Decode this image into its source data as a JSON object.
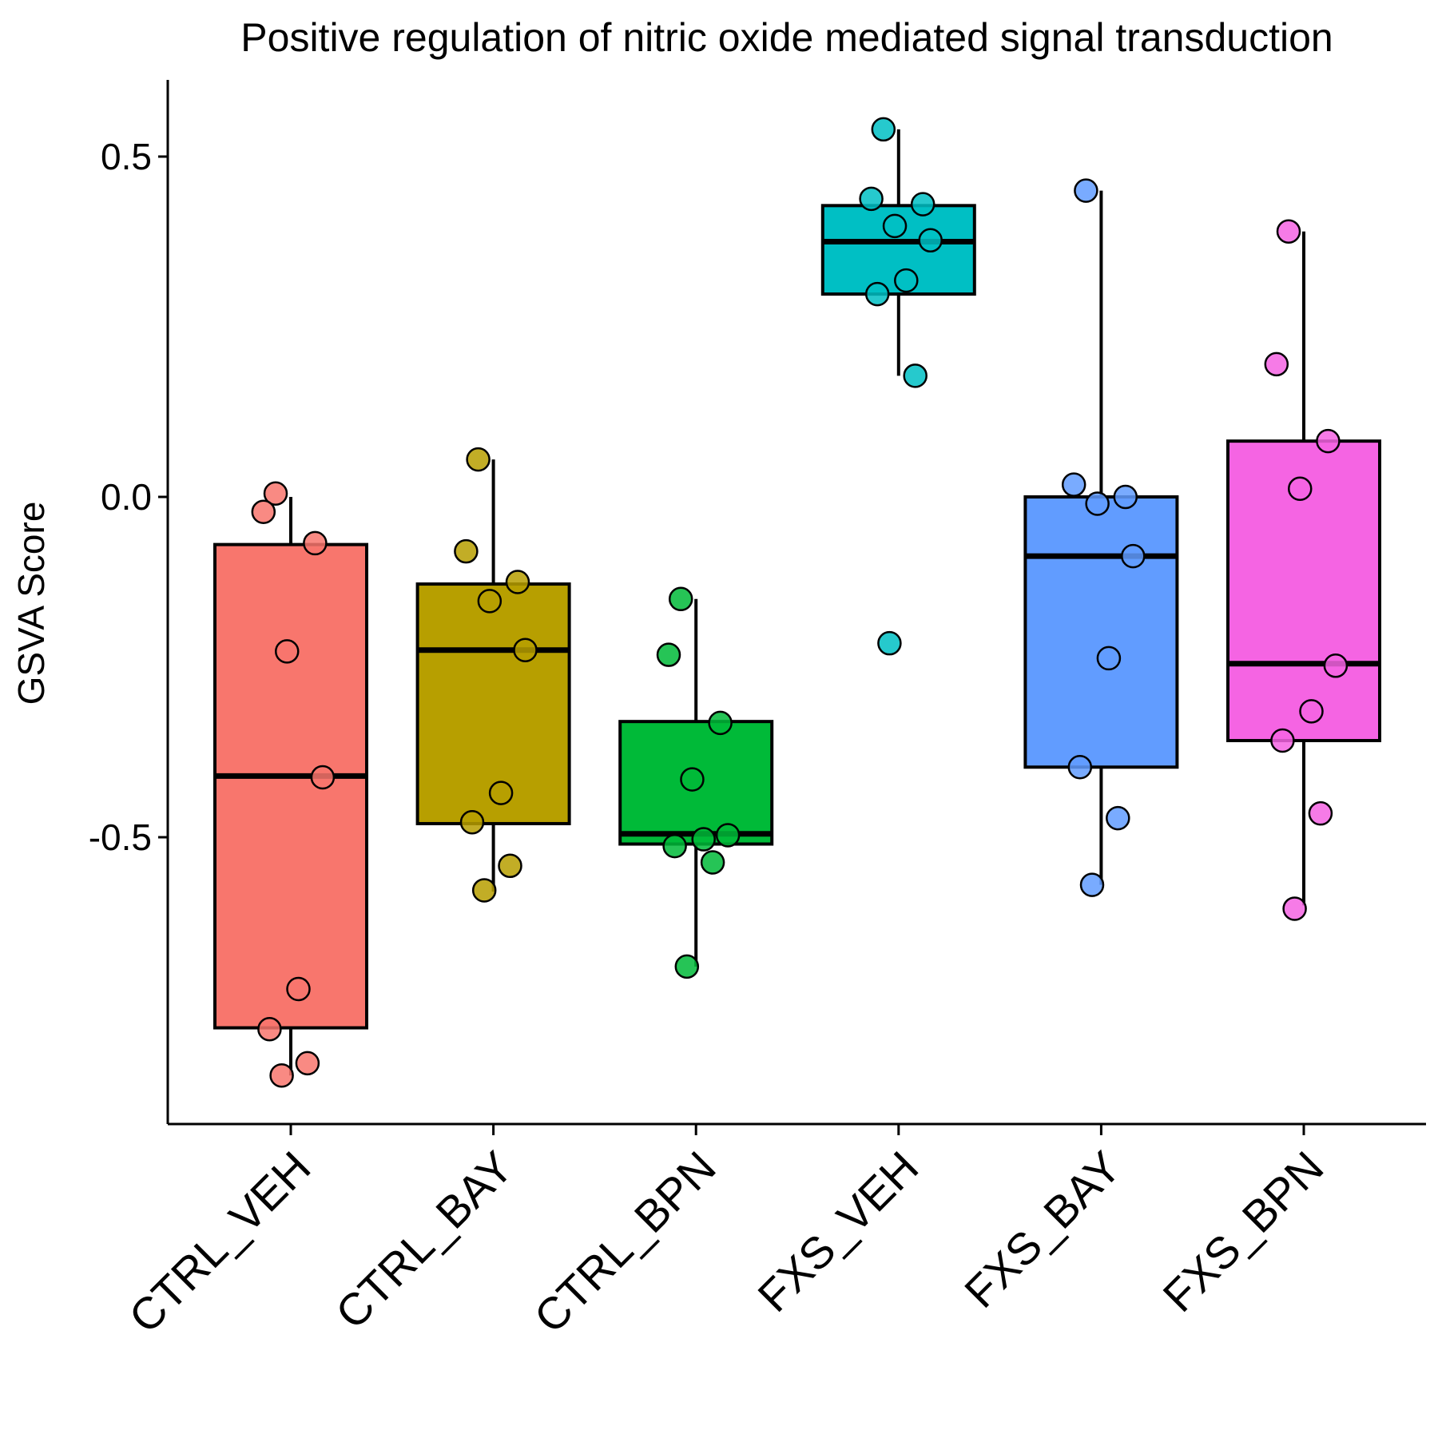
{
  "chart_data": {
    "type": "box",
    "title": "Positive regulation of nitric oxide mediated signal transduction",
    "xlabel": "",
    "ylabel": "GSVA Score",
    "ylim": [
      -0.92,
      0.61
    ],
    "yticks": [
      -0.5,
      0.0,
      0.5
    ],
    "ytick_labels": [
      "-0.5",
      "0.0",
      "0.5"
    ],
    "grid": false,
    "legend": "none",
    "categories": [
      "CTRL_VEH",
      "CTRL_BAY",
      "CTRL_BPN",
      "FXS_VEH",
      "FXS_BAY",
      "FXS_BPN"
    ],
    "colors": [
      "#F8766D",
      "#B79F00",
      "#00BA38",
      "#00BFC4",
      "#619CFF",
      "#F564E3"
    ],
    "boxes": [
      {
        "category": "CTRL_VEH",
        "whisker_low": -0.85,
        "q1": -0.78,
        "median": -0.41,
        "q3": -0.07,
        "whisker_high": 0.0
      },
      {
        "category": "CTRL_BAY",
        "whisker_low": -0.58,
        "q1": -0.48,
        "median": -0.225,
        "q3": -0.128,
        "whisker_high": 0.055
      },
      {
        "category": "CTRL_BPN",
        "whisker_low": -0.69,
        "q1": -0.51,
        "median": -0.495,
        "q3": -0.33,
        "whisker_high": -0.15
      },
      {
        "category": "FXS_VEH",
        "whisker_low": 0.178,
        "q1": 0.298,
        "median": 0.375,
        "q3": 0.428,
        "whisker_high": 0.54
      },
      {
        "category": "FXS_BAY",
        "whisker_low": -0.57,
        "q1": -0.397,
        "median": -0.087,
        "q3": 0.0,
        "whisker_high": 0.45
      },
      {
        "category": "FXS_BPN",
        "whisker_low": -0.6,
        "q1": -0.358,
        "median": -0.245,
        "q3": 0.082,
        "whisker_high": 0.39
      }
    ],
    "points": [
      {
        "category": "CTRL_VEH",
        "values": [
          0.005,
          -0.022,
          -0.068,
          -0.227,
          -0.412,
          -0.723,
          -0.782,
          -0.832,
          -0.85
        ]
      },
      {
        "category": "CTRL_BAY",
        "values": [
          0.055,
          -0.08,
          -0.125,
          -0.153,
          -0.225,
          -0.435,
          -0.478,
          -0.542,
          -0.578
        ]
      },
      {
        "category": "CTRL_BPN",
        "values": [
          -0.15,
          -0.232,
          -0.332,
          -0.415,
          -0.497,
          -0.503,
          -0.513,
          -0.537,
          -0.69
        ]
      },
      {
        "category": "FXS_VEH",
        "values": [
          0.54,
          0.438,
          0.43,
          0.398,
          0.377,
          0.318,
          0.298,
          0.178,
          -0.215
        ]
      },
      {
        "category": "FXS_BAY",
        "values": [
          0.45,
          0.018,
          0.0,
          -0.01,
          -0.087,
          -0.237,
          -0.397,
          -0.472,
          -0.57
        ]
      },
      {
        "category": "FXS_BPN",
        "values": [
          0.39,
          0.195,
          0.082,
          0.012,
          -0.248,
          -0.315,
          -0.358,
          -0.465,
          -0.605
        ]
      }
    ]
  }
}
